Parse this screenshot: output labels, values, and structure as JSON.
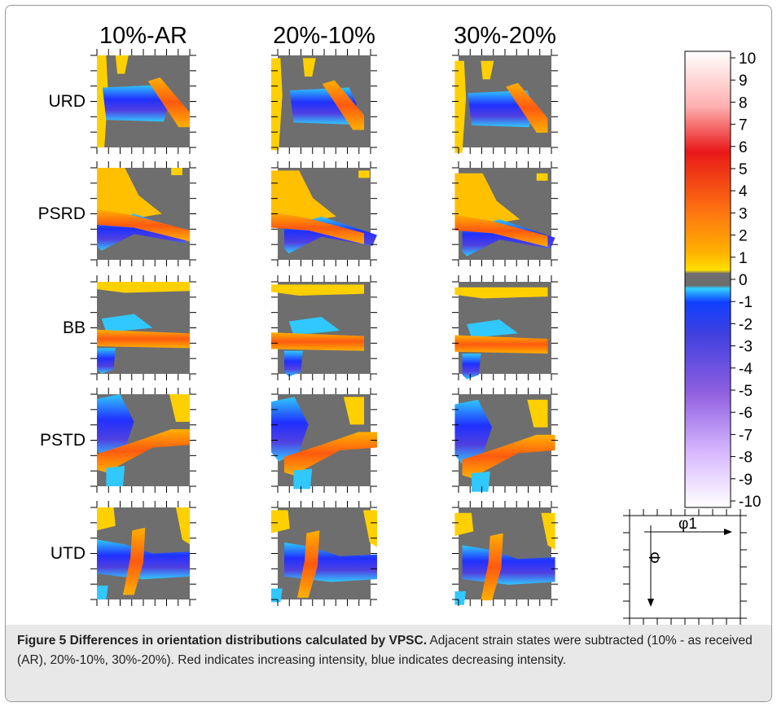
{
  "columns": [
    "10%-AR",
    "20%-10%",
    "30%-20%"
  ],
  "rows": [
    "URD",
    "PSRD",
    "BB",
    "PSTD",
    "UTD"
  ],
  "colorbar": {
    "ticks": [
      10,
      9,
      8,
      7,
      6,
      5,
      4,
      3,
      2,
      1,
      0,
      -1,
      -2,
      -3,
      -4,
      -5,
      -6,
      -7,
      -8,
      -9,
      -10
    ]
  },
  "key": {
    "x_label": "φ1",
    "y_label": "Φ"
  },
  "caption": {
    "label": "Figure 5",
    "title": "Differences in orientation distributions calculated by VPSC.",
    "text": "Adjacent strain states were subtracted (10% - as received (AR), 20%-10%, 30%-20%). Red indicates increasing intensity, blue indicates decreasing intensity."
  }
}
